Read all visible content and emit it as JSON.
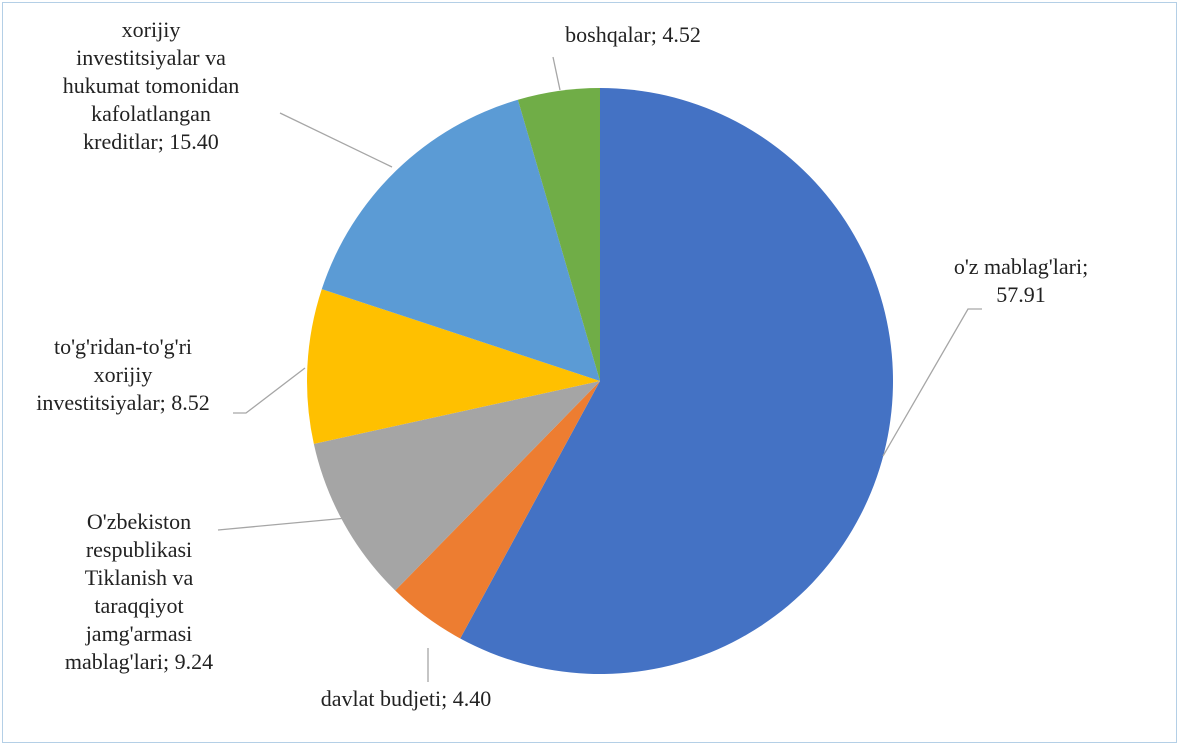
{
  "chart_data": {
    "type": "pie",
    "title": "",
    "start_angle_deg": 0,
    "direction": "clockwise",
    "slices": [
      {
        "label_lines": [
          "o'z mablag'lari;",
          "57.91"
        ],
        "label": "o'z mablag'lari",
        "value": 57.91,
        "color": "#4472C4"
      },
      {
        "label_lines": [
          "davlat budjeti; 4.40"
        ],
        "label": "davlat budjeti",
        "value": 4.4,
        "color": "#ED7D31"
      },
      {
        "label_lines": [
          "O'zbekiston",
          "respublikasi",
          "Tiklanish va",
          "taraqqiyot",
          "jamg'armasi",
          "mablag'lari; 9.24"
        ],
        "label": "O'zbekiston respublikasi Tiklanish va taraqqiyot jamg'armasi mablag'lari",
        "value": 9.24,
        "color": "#A5A5A5"
      },
      {
        "label_lines": [
          "to'g'ridan-to'g'ri",
          "xorijiy",
          "investitsiyalar; 8.52"
        ],
        "label": "to'g'ridan-to'g'ri xorijiy investitsiyalar",
        "value": 8.52,
        "color": "#FFC000"
      },
      {
        "label_lines": [
          "xorijiy",
          "investitsiyalar va",
          "hukumat tomonidan",
          "kafolatlangan",
          "kreditlar; 15.40"
        ],
        "label": "xorijiy investitsiyalar va hukumat tomonidan kafolatlangan kreditlar",
        "value": 15.4,
        "color": "#5B9BD5"
      },
      {
        "label_lines": [
          "boshqalar; 4.52"
        ],
        "label": "boshqalar",
        "value": 4.52,
        "color": "#70AD47"
      }
    ],
    "legend": "none",
    "data_labels": "outside-with-leader-lines"
  }
}
